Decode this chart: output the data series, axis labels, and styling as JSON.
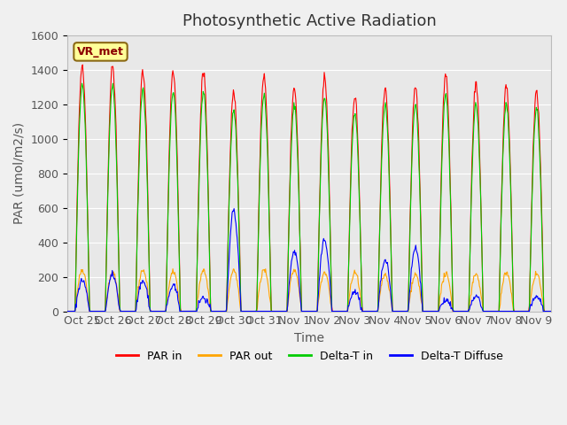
{
  "title": "Photosynthetic Active Radiation",
  "ylabel": "PAR (umol/m2/s)",
  "xlabel": "Time",
  "ylim": [
    0,
    1600
  ],
  "yticks": [
    0,
    200,
    400,
    600,
    800,
    1000,
    1200,
    1400,
    1600
  ],
  "xtick_labels": [
    "Oct 25",
    "Oct 26",
    "Oct 27",
    "Oct 28",
    "Oct 29",
    "Oct 30",
    "Oct 31",
    "Nov 1",
    "Nov 2",
    "Nov 3",
    "Nov 4",
    "Nov 5",
    "Nov 6",
    "Nov 7",
    "Nov 8",
    "Nov 9"
  ],
  "annotation_text": "VR_met",
  "annotation_color": "#8B0000",
  "annotation_bg": "#FFFF99",
  "annotation_border": "#8B6914",
  "line_colors": {
    "PAR in": "#FF0000",
    "PAR out": "#FFA500",
    "Delta-T in": "#00CC00",
    "Delta-T Diffuse": "#0000FF"
  },
  "legend_labels": [
    "PAR in",
    "PAR out",
    "Delta-T in",
    "Delta-T Diffuse"
  ],
  "background_color": "#E8E8E8",
  "figure_facecolor": "#F0F0F0",
  "grid_color": "#FFFFFF",
  "num_days": 16,
  "samples_per_day": 48,
  "title_fontsize": 13,
  "axis_label_fontsize": 10,
  "tick_fontsize": 9,
  "par_in_peaks": [
    1430,
    1420,
    1390,
    1390,
    1390,
    1265,
    1370,
    1300,
    1350,
    1245,
    1300,
    1300,
    1370,
    1310,
    1300,
    1270
  ],
  "par_out_peaks": [
    240,
    230,
    240,
    230,
    230,
    240,
    240,
    240,
    225,
    225,
    215,
    215,
    215,
    215,
    230,
    220
  ],
  "blue_peaks": [
    180,
    210,
    175,
    145,
    80,
    585,
    0,
    350,
    415,
    115,
    295,
    360,
    65,
    85,
    0,
    85
  ]
}
